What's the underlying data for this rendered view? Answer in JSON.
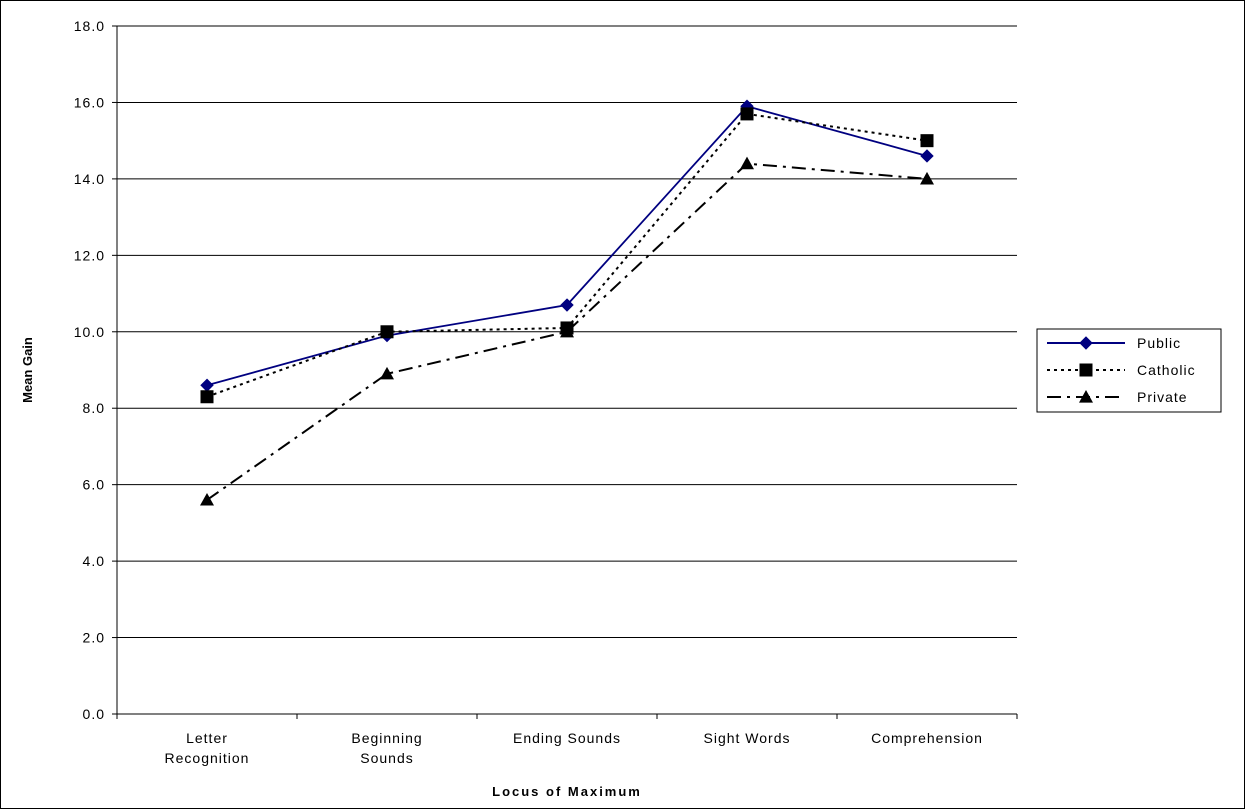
{
  "chart_data": {
    "type": "line",
    "title": "",
    "xlabel": "Locus of Maximum",
    "ylabel": "Mean Gain",
    "categories": [
      [
        "Letter",
        "Recognition"
      ],
      [
        "Beginning",
        "Sounds"
      ],
      [
        "Ending Sounds"
      ],
      [
        "Sight Words"
      ],
      [
        "Comprehension"
      ]
    ],
    "ylim": [
      0,
      18
    ],
    "yticks": [
      "0.0",
      "2.0",
      "4.0",
      "6.0",
      "8.0",
      "10.0",
      "12.0",
      "14.0",
      "16.0",
      "18.0"
    ],
    "ytick_values": [
      0,
      2,
      4,
      6,
      8,
      10,
      12,
      14,
      16,
      18
    ],
    "grid": true,
    "legend_position": "right",
    "series": [
      {
        "name": "Public",
        "values": [
          8.6,
          9.9,
          10.7,
          15.9,
          14.6
        ],
        "color": "#000080",
        "marker": "diamond",
        "dash": "solid"
      },
      {
        "name": "Catholic",
        "values": [
          8.3,
          10.0,
          10.1,
          15.7,
          15.0
        ],
        "color": "#000000",
        "marker": "square",
        "dash": "dotted"
      },
      {
        "name": "Private",
        "values": [
          5.6,
          8.9,
          10.0,
          14.4,
          14.0
        ],
        "color": "#000000",
        "marker": "triangle",
        "dash": "dashdot"
      }
    ]
  }
}
